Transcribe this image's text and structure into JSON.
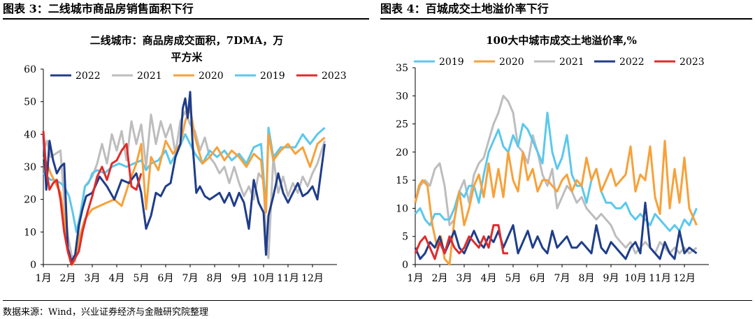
{
  "left_header": "图表 3：二线城市商品房销售面积下行",
  "right_header": "图表 4：百城成交土地溢价率下行",
  "source": "数据来源：Wind，兴业证券经济与金融研究院整理",
  "colors": {
    "2022": "#1f3d8a",
    "2021": "#bdbdbd",
    "2020": "#f7a13a",
    "2019": "#5bc8ec",
    "2023": "#e02b2b"
  },
  "chart_data": [
    {
      "type": "line",
      "title_line1": "二线城市：商品房成交面积，7DMA，万",
      "title_line2": "平方米",
      "ylim": [
        0,
        60
      ],
      "yticks": [
        0,
        10,
        20,
        30,
        40,
        50,
        60
      ],
      "xticks": [
        "1月",
        "2月",
        "3月",
        "4月",
        "5月",
        "6月",
        "7月",
        "8月",
        "9月",
        "10月",
        "11月",
        "12月"
      ],
      "legend": [
        "2022",
        "2021",
        "2020",
        "2019",
        "2023"
      ],
      "legend_placement": "top",
      "x_unit": "month index (1 = January)",
      "series": [
        {
          "name": "2019",
          "x": [
            1,
            1.15,
            1.3,
            1.5,
            1.7,
            1.85,
            2.05,
            2.2,
            2.35,
            2.5,
            2.7,
            2.85,
            3,
            3.2,
            3.5,
            3.8,
            4.1,
            4.4,
            4.7,
            5,
            5.2,
            5.4,
            5.7,
            6,
            6.2,
            6.5,
            6.8,
            7,
            7.2,
            7.5,
            7.8,
            8.1,
            8.4,
            8.7,
            9,
            9.3,
            9.6,
            9.9,
            10.1,
            10.2,
            10.4,
            10.7,
            11,
            11.3,
            11.6,
            11.9,
            12.2,
            12.5
          ],
          "y": [
            28,
            27,
            26,
            26,
            25,
            24,
            21,
            16,
            10,
            15,
            24,
            25,
            28,
            29,
            28,
            30,
            31,
            30,
            31,
            32,
            29,
            31,
            32,
            35,
            31,
            35,
            40,
            37,
            34,
            31,
            35,
            33,
            35,
            32,
            34,
            31,
            36,
            37,
            17,
            42,
            33,
            36,
            36,
            36,
            40,
            37,
            40,
            42
          ]
        },
        {
          "name": "2020",
          "x": [
            1,
            1.15,
            1.3,
            1.5,
            1.7,
            1.85,
            2,
            2.1,
            2.2,
            2.35,
            2.5,
            2.7,
            3,
            3.3,
            3.6,
            3.9,
            4.2,
            4.5,
            4.8,
            5,
            5.2,
            5.4,
            5.7,
            6,
            6.3,
            6.6,
            6.8,
            7,
            7.2,
            7.5,
            7.8,
            8.1,
            8.4,
            8.7,
            9,
            9.3,
            9.6,
            9.9,
            10.1,
            10.2,
            10.4,
            10.7,
            11,
            11.3,
            11.6,
            11.9,
            12.2,
            12.5
          ],
          "y": [
            33,
            31,
            28,
            25,
            22,
            15,
            5,
            1,
            0,
            3,
            9,
            14,
            17,
            18,
            19,
            20,
            18,
            25,
            31,
            37,
            17,
            33,
            29,
            38,
            34,
            37,
            44,
            48,
            39,
            31,
            33,
            36,
            32,
            35,
            33,
            30,
            34,
            32,
            16,
            40,
            32,
            35,
            37,
            34,
            36,
            30,
            37,
            39
          ]
        },
        {
          "name": "2021",
          "x": [
            1,
            1.15,
            1.3,
            1.5,
            1.7,
            1.85,
            2,
            2.15,
            2.3,
            2.5,
            2.7,
            3,
            3.2,
            3.4,
            3.6,
            3.8,
            4,
            4.2,
            4.4,
            4.6,
            4.8,
            5,
            5.2,
            5.4,
            5.6,
            5.8,
            6,
            6.2,
            6.4,
            6.6,
            6.8,
            7,
            7.2,
            7.4,
            7.6,
            7.8,
            8,
            8.2,
            8.4,
            8.6,
            8.8,
            9,
            9.2,
            9.4,
            9.6,
            9.8,
            10,
            10.1,
            10.2,
            10.4,
            10.6,
            10.8,
            11,
            11.2,
            11.4,
            11.6,
            11.8,
            12,
            12.2,
            12.5
          ],
          "y": [
            35,
            38,
            33,
            34,
            35,
            20,
            9,
            3,
            1,
            14,
            24,
            27,
            31,
            37,
            31,
            40,
            35,
            41,
            32,
            44,
            37,
            43,
            30,
            46,
            37,
            44,
            39,
            43,
            34,
            44,
            47,
            43,
            41,
            35,
            39,
            33,
            31,
            28,
            30,
            25,
            30,
            25,
            21,
            24,
            20,
            28,
            26,
            8,
            2,
            33,
            22,
            27,
            21,
            25,
            22,
            27,
            24,
            28,
            31,
            38
          ]
        },
        {
          "name": "2022",
          "x": [
            1,
            1.12,
            1.25,
            1.4,
            1.55,
            1.7,
            1.85,
            2,
            2.15,
            2.3,
            2.45,
            2.6,
            2.75,
            3,
            3.3,
            3.6,
            3.9,
            4.2,
            4.5,
            4.8,
            5,
            5.2,
            5.4,
            5.6,
            5.8,
            6,
            6.2,
            6.4,
            6.6,
            6.7,
            6.8,
            6.9,
            7,
            7.1,
            7.25,
            7.4,
            7.6,
            7.8,
            8,
            8.2,
            8.4,
            8.6,
            8.8,
            9,
            9.2,
            9.4,
            9.6,
            9.8,
            10,
            10.1,
            10.2,
            10.4,
            10.6,
            10.8,
            11,
            11.2,
            11.4,
            11.6,
            11.8,
            12,
            12.2,
            12.5
          ],
          "y": [
            40,
            23,
            38,
            32,
            28,
            30,
            31,
            5,
            1,
            3,
            12,
            17,
            21,
            22,
            27,
            24,
            20,
            26,
            25,
            28,
            22,
            11,
            15,
            22,
            21,
            24,
            25,
            33,
            37,
            48,
            51,
            45,
            53,
            37,
            22,
            24,
            21,
            20,
            21,
            22,
            19,
            22,
            18,
            22,
            19,
            11,
            26,
            19,
            16,
            3,
            15,
            21,
            28,
            22,
            19,
            22,
            25,
            21,
            22,
            24,
            20,
            37
          ]
        },
        {
          "name": "2023",
          "x": [
            1,
            1.12,
            1.25,
            1.4,
            1.55,
            1.7,
            1.85,
            2,
            2.15,
            2.3,
            2.45,
            2.6,
            2.8,
            3,
            3.2,
            3.4,
            3.6,
            3.8,
            4,
            4.2,
            4.4,
            4.6,
            4.8,
            5
          ],
          "y": [
            41,
            29,
            23,
            25,
            26,
            20,
            10,
            4,
            0,
            2,
            4,
            10,
            16,
            21,
            27,
            30,
            26,
            31,
            32,
            35,
            37,
            24,
            23,
            28
          ]
        }
      ]
    },
    {
      "type": "line",
      "title": "100大中城市成交土地溢价率,%",
      "ylim": [
        0,
        35
      ],
      "yticks": [
        0,
        5,
        10,
        15,
        20,
        25,
        30,
        35
      ],
      "xticks": [
        "1月",
        "2月",
        "3月",
        "4月",
        "5月",
        "6月",
        "7月",
        "8月",
        "9月",
        "10月",
        "11月",
        "12月"
      ],
      "legend": [
        "2019",
        "2020",
        "2021",
        "2022",
        "2023"
      ],
      "legend_placement": "top",
      "x_unit": "month index (1 = January)",
      "series": [
        {
          "name": "2019",
          "x": [
            1,
            1.2,
            1.4,
            1.6,
            1.8,
            2,
            2.2,
            2.4,
            2.6,
            2.8,
            3,
            3.2,
            3.4,
            3.6,
            3.8,
            4,
            4.2,
            4.4,
            4.6,
            4.8,
            5,
            5.2,
            5.4,
            5.6,
            5.8,
            6,
            6.2,
            6.4,
            6.6,
            6.8,
            7,
            7.2,
            7.4,
            7.6,
            7.8,
            8,
            8.2,
            8.4,
            8.6,
            8.8,
            9,
            9.2,
            9.4,
            9.6,
            9.8,
            10,
            10.2,
            10.4,
            10.6,
            10.8,
            11,
            11.2,
            11.4,
            11.6,
            11.8,
            12,
            12.2,
            12.5
          ],
          "y": [
            9,
            10,
            8,
            7,
            9,
            9,
            8,
            8,
            10,
            13,
            12,
            14,
            14,
            11,
            16,
            20,
            22,
            24,
            21,
            20,
            23,
            21,
            25,
            24,
            22,
            20,
            18,
            27,
            20,
            17,
            19,
            23,
            16,
            14,
            14,
            11,
            15,
            17,
            13,
            11,
            11,
            10,
            10,
            11,
            9,
            8,
            9,
            8,
            7,
            9,
            8,
            7,
            6,
            7,
            6,
            8,
            7,
            10
          ]
        },
        {
          "name": "2020",
          "x": [
            1,
            1.15,
            1.3,
            1.5,
            1.7,
            1.9,
            2.05,
            2.2,
            2.4,
            2.6,
            2.8,
            3,
            3.2,
            3.4,
            3.6,
            3.8,
            4,
            4.2,
            4.4,
            4.6,
            4.8,
            5,
            5.2,
            5.4,
            5.6,
            5.8,
            6,
            6.2,
            6.4,
            6.6,
            6.8,
            7,
            7.2,
            7.4,
            7.6,
            7.8,
            8,
            8.2,
            8.4,
            8.6,
            8.8,
            9,
            9.2,
            9.4,
            9.6,
            9.8,
            10,
            10.2,
            10.4,
            10.6,
            10.8,
            11,
            11.2,
            11.4,
            11.6,
            11.8,
            12,
            12.2,
            12.5
          ],
          "y": [
            11,
            14,
            15,
            14,
            7,
            3,
            5,
            1,
            0,
            8,
            13,
            7,
            10,
            14,
            16,
            12,
            18,
            12,
            17,
            12,
            20,
            15,
            13,
            20,
            15,
            17,
            13,
            15,
            15,
            14,
            13,
            15,
            16,
            13,
            15,
            14,
            19,
            15,
            17,
            13,
            15,
            17,
            14,
            15,
            16,
            21,
            13,
            16,
            15,
            21,
            12,
            9,
            22,
            10,
            17,
            11,
            19,
            10,
            7
          ]
        },
        {
          "name": "2021",
          "x": [
            1,
            1.2,
            1.4,
            1.6,
            1.8,
            2,
            2.2,
            2.4,
            2.6,
            2.8,
            3,
            3.2,
            3.4,
            3.6,
            3.8,
            4,
            4.2,
            4.4,
            4.6,
            4.8,
            5,
            5.2,
            5.4,
            5.6,
            5.8,
            6,
            6.2,
            6.4,
            6.6,
            6.8,
            7,
            7.2,
            7.4,
            7.6,
            7.8,
            8,
            8.2,
            8.4,
            8.6,
            8.8,
            9,
            9.2,
            9.4,
            9.6,
            9.8,
            10,
            10.2,
            10.4,
            10.6,
            10.8,
            11,
            11.2,
            11.4,
            11.6,
            11.8,
            12,
            12.2,
            12.5
          ],
          "y": [
            11,
            14,
            15,
            14,
            17,
            18,
            14,
            7,
            8,
            13,
            15,
            11,
            16,
            18,
            19,
            22,
            25,
            27,
            30,
            29,
            27,
            21,
            20,
            18,
            23,
            20,
            16,
            14,
            17,
            10,
            12,
            14,
            13,
            11,
            12,
            10,
            9,
            8,
            9,
            8,
            7,
            5,
            4,
            3,
            4,
            2,
            3,
            4,
            3,
            2,
            4,
            3,
            2,
            3,
            2,
            3,
            2,
            3
          ]
        },
        {
          "name": "2022",
          "x": [
            1,
            1.2,
            1.4,
            1.6,
            1.8,
            2,
            2.2,
            2.4,
            2.6,
            2.8,
            3,
            3.2,
            3.4,
            3.6,
            3.8,
            4,
            4.2,
            4.4,
            4.6,
            4.8,
            5,
            5.2,
            5.4,
            5.6,
            5.8,
            6,
            6.2,
            6.4,
            6.6,
            6.8,
            7,
            7.2,
            7.4,
            7.6,
            7.8,
            8,
            8.2,
            8.4,
            8.6,
            8.8,
            9,
            9.2,
            9.4,
            9.6,
            9.8,
            10,
            10.2,
            10.4,
            10.6,
            10.8,
            11,
            11.2,
            11.4,
            11.6,
            11.8,
            12,
            12.2,
            12.5
          ],
          "y": [
            3,
            1,
            2,
            4,
            3,
            5,
            2,
            4,
            6,
            3,
            2,
            4,
            6,
            4,
            3,
            5,
            4,
            6,
            3,
            5,
            7,
            2,
            4,
            6,
            3,
            5,
            3,
            2,
            6,
            3,
            4,
            5,
            3,
            3,
            4,
            3,
            2,
            7,
            3,
            2,
            4,
            3,
            2,
            1,
            3,
            4,
            2,
            11,
            3,
            2,
            1,
            4,
            2,
            1,
            6,
            2,
            3,
            2
          ]
        },
        {
          "name": "2023",
          "x": [
            1,
            1.2,
            1.4,
            1.6,
            1.8,
            2,
            2.2,
            2.4,
            2.6,
            2.8,
            3,
            3.2,
            3.4,
            3.6,
            3.8,
            4,
            4.2,
            4.4,
            4.6,
            4.8
          ],
          "y": [
            2,
            4,
            5,
            3,
            1,
            4,
            2,
            5,
            3,
            2,
            3,
            5,
            4,
            3,
            5,
            3,
            7,
            7,
            2,
            2
          ]
        }
      ]
    }
  ]
}
